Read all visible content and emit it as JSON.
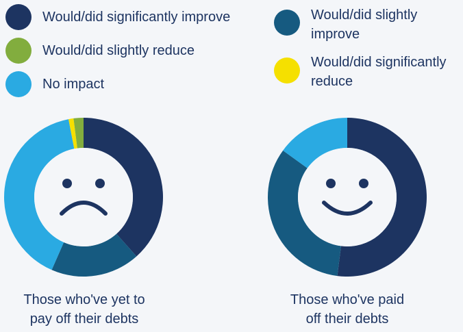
{
  "colors": {
    "significantly_improve": "#1d3461",
    "slightly_improve": "#165a80",
    "slightly_reduce": "#82ad3e",
    "significantly_reduce": "#f5e000",
    "no_impact": "#2aaae2",
    "face_features": "#1d3461",
    "face_fill": "#f4f6f9"
  },
  "legend": {
    "significantly_improve": "Would/did significantly improve",
    "slightly_improve_line1": "Would/did slightly",
    "slightly_improve_line2": "improve",
    "slightly_reduce": "Would/did slightly reduce",
    "significantly_reduce_line1": "Would/did significantly",
    "significantly_reduce_line2": "reduce",
    "no_impact": "No impact"
  },
  "captions": {
    "yet_to_pay_line1": "Those who've yet to",
    "yet_to_pay_line2": "pay off their debts",
    "paid_off_line1": "Those who've paid",
    "paid_off_line2": "off their debts"
  },
  "chart_data": [
    {
      "type": "pie",
      "title": "Those who've yet to pay off their debts",
      "categories": [
        "Would/did significantly improve",
        "Would/did slightly improve",
        "No impact",
        "Would/did significantly reduce",
        "Would/did slightly reduce"
      ],
      "values": [
        38,
        18,
        40,
        1,
        2
      ],
      "face": "sad"
    },
    {
      "type": "pie",
      "title": "Those who've paid off their debts",
      "categories": [
        "Would/did significantly improve",
        "Would/did slightly improve",
        "No impact",
        "Would/did significantly reduce",
        "Would/did slightly reduce"
      ],
      "values": [
        52,
        33,
        15,
        0,
        0
      ],
      "face": "happy"
    }
  ]
}
